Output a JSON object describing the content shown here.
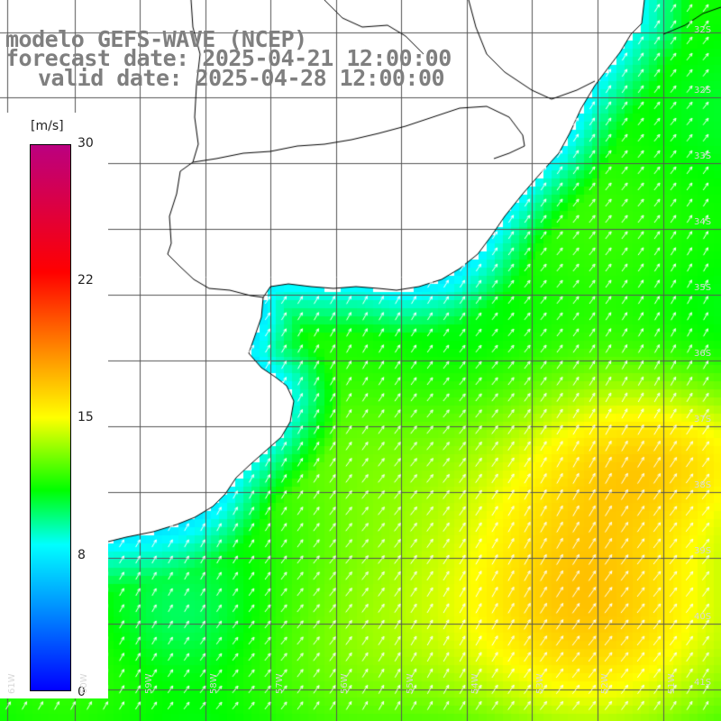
{
  "title": {
    "model": "modelo GEFS-WAVE (NCEP)",
    "forecast": "forecast date: 2025-04-21 12:00:00",
    "valid": "valid date: 2025-04-28 12:00:00"
  },
  "colorbar": {
    "unit": "[m/s]",
    "min": 0,
    "max": 30,
    "ticks": [
      {
        "value": 30,
        "label": "30"
      },
      {
        "value": 22,
        "label": "22"
      },
      {
        "value": 15,
        "label": "15"
      },
      {
        "value": 8,
        "label": "8"
      },
      {
        "value": 0,
        "label": "0"
      }
    ],
    "stops": [
      {
        "value": 0,
        "color": "#0000ff"
      },
      {
        "value": 8,
        "color": "#00ffff"
      },
      {
        "value": 11,
        "color": "#00ff00"
      },
      {
        "value": 15,
        "color": "#ffff00"
      },
      {
        "value": 19,
        "color": "#ff8000"
      },
      {
        "value": 23,
        "color": "#ff0000"
      },
      {
        "value": 30,
        "color": "#bb0080"
      }
    ]
  },
  "map": {
    "variable": "wind speed",
    "lat_labels": [
      "32S",
      "33S",
      "34S",
      "35S",
      "36S",
      "37S",
      "38S",
      "39S",
      "40S",
      "41S"
    ],
    "lon_labels": [
      "61W",
      "60W",
      "59W",
      "58W",
      "57W",
      "56W",
      "55W",
      "54W",
      "53W",
      "52W",
      "51W"
    ],
    "arrow_direction": "southwest winds (arrows pointing northeast)",
    "colors": {
      "land": "#ffffff",
      "coast": "#000000",
      "grid": "#555555",
      "arrows": "#ffffff"
    }
  }
}
